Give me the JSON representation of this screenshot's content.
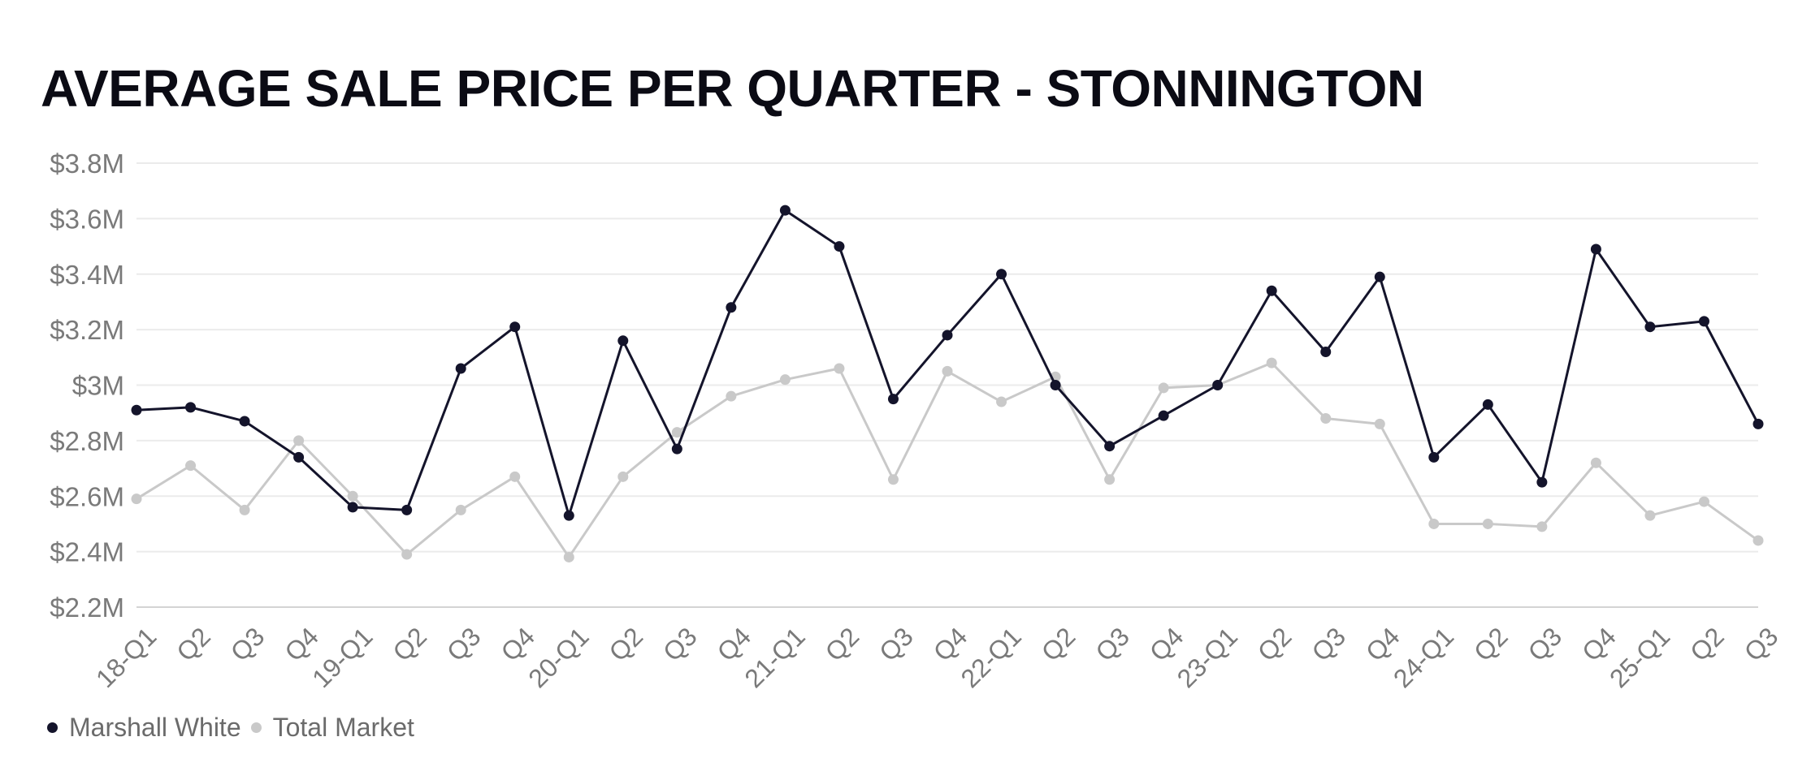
{
  "chart_data": {
    "type": "line",
    "title": "AVERAGE SALE PRICE PER QUARTER - STONNINGTON",
    "categories": [
      "18-Q1",
      "Q2",
      "Q3",
      "Q4",
      "19-Q1",
      "Q2",
      "Q3",
      "Q4",
      "20-Q1",
      "Q2",
      "Q3",
      "Q4",
      "21-Q1",
      "Q2",
      "Q3",
      "Q4",
      "22-Q1",
      "Q2",
      "Q3",
      "Q4",
      "23-Q1",
      "Q2",
      "Q3",
      "Q4",
      "24-Q1",
      "Q2",
      "Q3",
      "Q4",
      "25-Q1",
      "Q2",
      "Q3"
    ],
    "y_ticks": [
      "$3.8M",
      "$3.6M",
      "$3.4M",
      "$3.2M",
      "$3M",
      "$2.8M",
      "$2.6M",
      "$2.4M",
      "$2.2M"
    ],
    "ylim": [
      2.2,
      3.8
    ],
    "grid": true,
    "legend_position": "bottom-left",
    "series": [
      {
        "name": "Marshall White",
        "color": "#14142b",
        "values": [
          2.91,
          2.92,
          2.87,
          2.74,
          2.56,
          2.55,
          3.06,
          3.21,
          2.53,
          3.16,
          2.77,
          3.28,
          3.63,
          3.5,
          2.95,
          3.18,
          3.4,
          3.0,
          2.78,
          2.89,
          3.0,
          3.34,
          3.12,
          3.39,
          2.74,
          2.93,
          2.65,
          3.49,
          3.21,
          3.23,
          2.86
        ]
      },
      {
        "name": "Total Market",
        "color": "#c9c9c9",
        "values": [
          2.59,
          2.71,
          2.55,
          2.8,
          2.6,
          2.39,
          2.55,
          2.67,
          2.38,
          2.67,
          2.83,
          2.96,
          3.02,
          3.06,
          2.66,
          3.05,
          2.94,
          3.03,
          2.66,
          2.99,
          3.0,
          3.08,
          2.88,
          2.86,
          2.5,
          2.5,
          2.49,
          2.72,
          2.53,
          2.58,
          2.44
        ]
      }
    ]
  }
}
